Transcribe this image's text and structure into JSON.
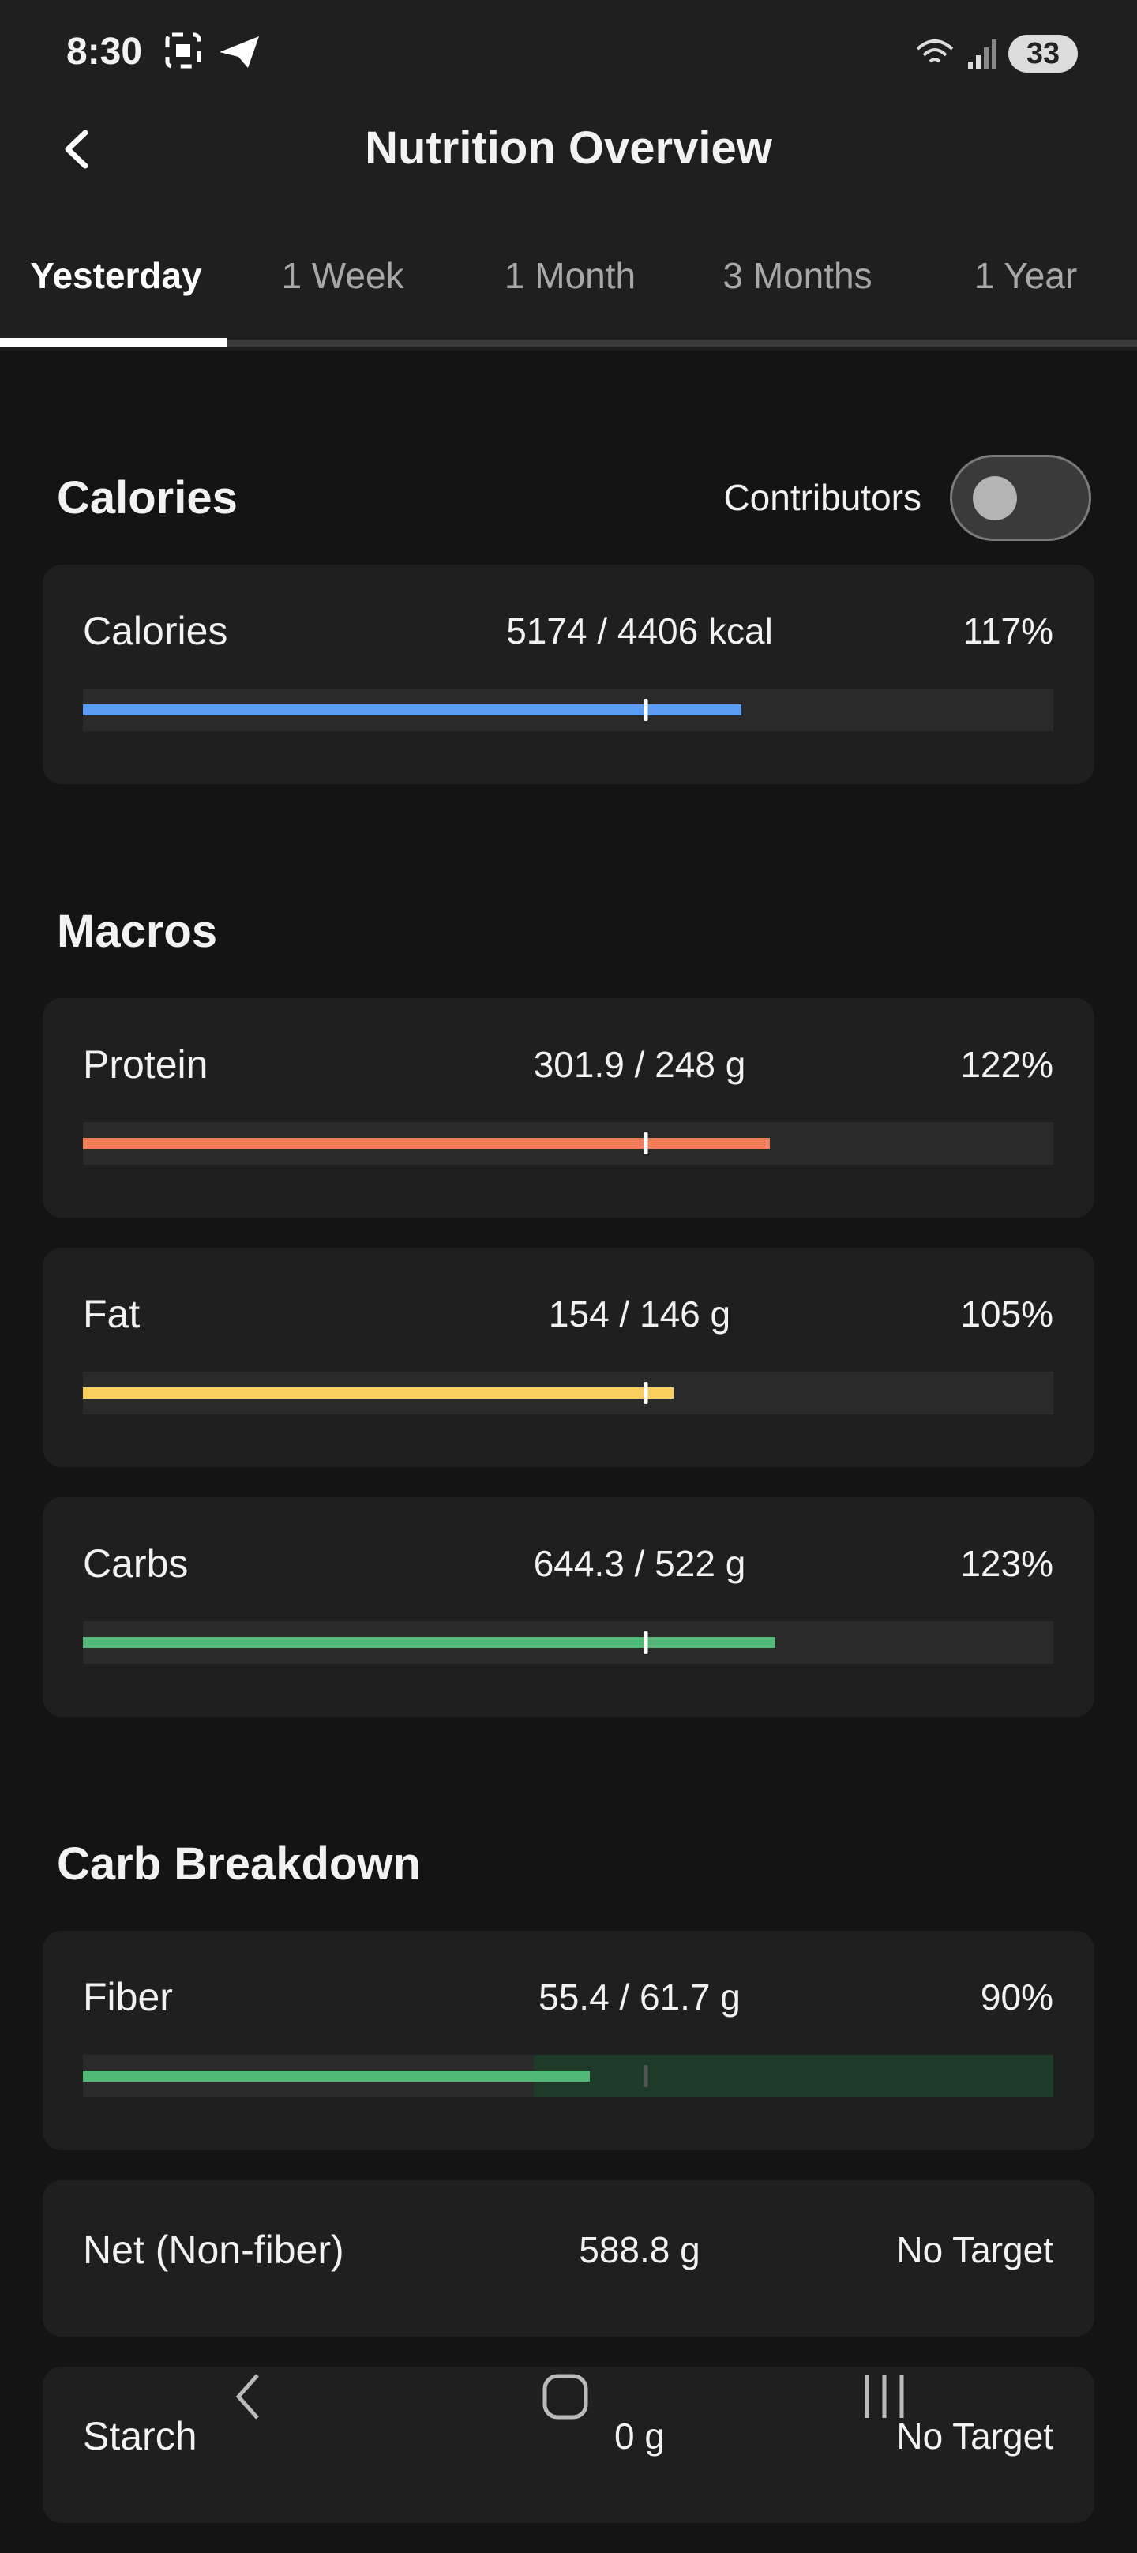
{
  "status_bar": {
    "time": "8:30",
    "battery": "33"
  },
  "header": {
    "title": "Nutrition Overview"
  },
  "tabs": [
    "Yesterday",
    "1 Week",
    "1 Month",
    "3 Months",
    "1 Year"
  ],
  "sections": [
    {
      "title": "Calories",
      "toggle_label": "Contributors",
      "rows": [
        {
          "name": "Calories",
          "amount": "5174 / 4406 kcal",
          "percent": 117,
          "percent_label": "117%",
          "color": "#5b9cf5"
        }
      ]
    },
    {
      "title": "Macros",
      "rows": [
        {
          "name": "Protein",
          "amount": "301.9 / 248 g",
          "percent": 122,
          "percent_label": "122%",
          "color": "#f47e5a"
        },
        {
          "name": "Fat",
          "amount": "154 / 146 g",
          "percent": 105,
          "percent_label": "105%",
          "color": "#f8cf5d"
        },
        {
          "name": "Carbs",
          "amount": "644.3 / 522 g",
          "percent": 123,
          "percent_label": "123%",
          "color": "#52b878"
        }
      ]
    },
    {
      "title": "Carb Breakdown",
      "rows": [
        {
          "name": "Fiber",
          "amount": "55.4 / 61.7 g",
          "percent": 90,
          "percent_label": "90%",
          "color": "#52b878",
          "zone_color": "#1e3a29"
        },
        {
          "name": "Net (Non-fiber)",
          "amount": "588.8 g",
          "status": "No Target"
        },
        {
          "name": "Starch",
          "amount": "0 g",
          "status": "No Target"
        }
      ]
    }
  ]
}
